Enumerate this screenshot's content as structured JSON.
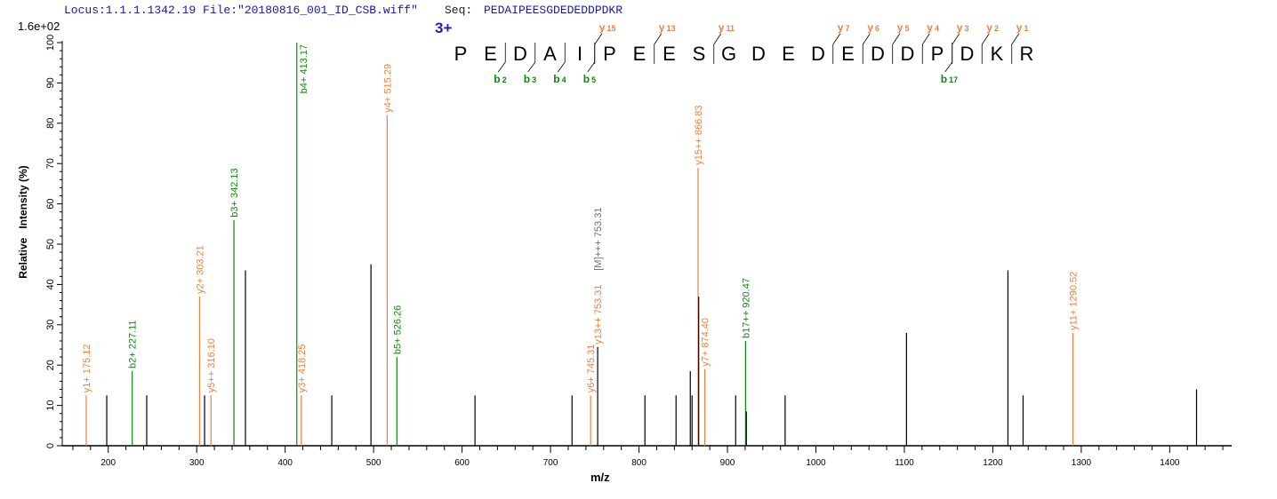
{
  "header": {
    "locus_file": "Locus:1.1.1.1342.19 File:\"20180816_001_ID_CSB.wiff\"",
    "seq_label": "Seq:",
    "seq_value": "PEDAIPEESGDEDEDDPDKR"
  },
  "colors": {
    "header": "#1a1aa6",
    "y_ion": "#f07f3c",
    "b_ion": "#0a8a0a",
    "unmatched": "#000000",
    "precursor": "#707070",
    "charge": "#1a1ad0"
  },
  "charge": "3+",
  "sequence": [
    "P",
    "E",
    "D",
    "A",
    "I",
    "P",
    "E",
    "E",
    "S",
    "G",
    "D",
    "E",
    "D",
    "E",
    "D",
    "D",
    "P",
    "D",
    "K",
    "R"
  ],
  "fragments": {
    "y": [
      {
        "label": "y",
        "sub": "15",
        "after": 4
      },
      {
        "label": "y",
        "sub": "13",
        "after": 6
      },
      {
        "label": "y",
        "sub": "11",
        "after": 8
      },
      {
        "label": "y",
        "sub": "7",
        "after": 12
      },
      {
        "label": "y",
        "sub": "6",
        "after": 13
      },
      {
        "label": "y",
        "sub": "5",
        "after": 14
      },
      {
        "label": "y",
        "sub": "4",
        "after": 15
      },
      {
        "label": "y",
        "sub": "3",
        "after": 16
      },
      {
        "label": "y",
        "sub": "2",
        "after": 17
      },
      {
        "label": "y",
        "sub": "1",
        "after": 18
      }
    ],
    "b": [
      {
        "label": "b",
        "sub": "2",
        "after": 1
      },
      {
        "label": "b",
        "sub": "3",
        "after": 2
      },
      {
        "label": "b",
        "sub": "4",
        "after": 3
      },
      {
        "label": "b",
        "sub": "5",
        "after": 4
      },
      {
        "label": "b",
        "sub": "17",
        "after": 16
      }
    ]
  },
  "chart_data": {
    "type": "bar",
    "title": "",
    "xlabel": "m/z",
    "ylabel": "Relative   Intensity (%)",
    "y_max_label": "1.6e+02",
    "xlim": [
      148,
      1470
    ],
    "ylim": [
      0,
      100
    ],
    "xticks": [
      200,
      300,
      400,
      500,
      600,
      700,
      800,
      900,
      1000,
      1100,
      1200,
      1300,
      1400
    ],
    "yticks": [
      0,
      10,
      20,
      30,
      40,
      50,
      60,
      70,
      80,
      90,
      100
    ],
    "grid": false,
    "peaks": [
      {
        "mz": 175.12,
        "intensity": 12.5,
        "type": "y",
        "label": "y1+ 175.12"
      },
      {
        "mz": 198.3,
        "intensity": 12.5,
        "type": "none"
      },
      {
        "mz": 227.11,
        "intensity": 18.5,
        "type": "b",
        "label": "b2+ 227.11"
      },
      {
        "mz": 243.5,
        "intensity": 12.5,
        "type": "none"
      },
      {
        "mz": 303.21,
        "intensity": 37,
        "type": "y",
        "label": "y2+ 303.21"
      },
      {
        "mz": 308.9,
        "intensity": 12.5,
        "type": "none"
      },
      {
        "mz": 316.1,
        "intensity": 12.5,
        "type": "y",
        "label": "y5++ 316.10"
      },
      {
        "mz": 342.13,
        "intensity": 56,
        "type": "b",
        "label": "b3+ 342.13"
      },
      {
        "mz": 355.1,
        "intensity": 43.5,
        "type": "none"
      },
      {
        "mz": 413.17,
        "intensity": 100,
        "type": "b",
        "label": "b4+ 413.17"
      },
      {
        "mz": 418.25,
        "intensity": 12.5,
        "type": "y",
        "label": "y3+ 418.25"
      },
      {
        "mz": 452.7,
        "intensity": 12.5,
        "type": "none"
      },
      {
        "mz": 497.0,
        "intensity": 45,
        "type": "none"
      },
      {
        "mz": 515.29,
        "intensity": 82,
        "type": "y",
        "label": "y4+ 515.29"
      },
      {
        "mz": 526.26,
        "intensity": 22,
        "type": "b",
        "label": "b5+ 526.26"
      },
      {
        "mz": 614.6,
        "intensity": 12.5,
        "type": "none"
      },
      {
        "mz": 724.3,
        "intensity": 12.5,
        "type": "none"
      },
      {
        "mz": 745.31,
        "intensity": 12.5,
        "type": "y",
        "label": "y6+ 745.31"
      },
      {
        "mz": 753.31,
        "intensity": 24.5,
        "type": "none",
        "label": "y13++ 753.31",
        "label_type": "y",
        "label2": "[M]+++ 753.31"
      },
      {
        "mz": 806.7,
        "intensity": 12.5,
        "type": "none"
      },
      {
        "mz": 841.9,
        "intensity": 12.5,
        "type": "none"
      },
      {
        "mz": 858.0,
        "intensity": 18.5,
        "type": "none"
      },
      {
        "mz": 860.0,
        "intensity": 12.5,
        "type": "none"
      },
      {
        "mz": 866.83,
        "intensity": 69,
        "type": "y",
        "label": "y15++ 866.83"
      },
      {
        "mz": 867.5,
        "intensity": 37,
        "type": "none"
      },
      {
        "mz": 874.4,
        "intensity": 19,
        "type": "y",
        "label": "y7+ 874.40"
      },
      {
        "mz": 909.3,
        "intensity": 12.5,
        "type": "none"
      },
      {
        "mz": 920.47,
        "intensity": 26,
        "type": "b",
        "label": "b17++ 920.47"
      },
      {
        "mz": 921.4,
        "intensity": 8.5,
        "type": "none"
      },
      {
        "mz": 965.2,
        "intensity": 12.5,
        "type": "none"
      },
      {
        "mz": 1102.4,
        "intensity": 28,
        "type": "none"
      },
      {
        "mz": 1217.1,
        "intensity": 43.5,
        "type": "none"
      },
      {
        "mz": 1234.2,
        "intensity": 12.5,
        "type": "none"
      },
      {
        "mz": 1290.52,
        "intensity": 28,
        "type": "y",
        "label": "y11+ 1290.52"
      },
      {
        "mz": 1430.3,
        "intensity": 14,
        "type": "none"
      }
    ]
  }
}
